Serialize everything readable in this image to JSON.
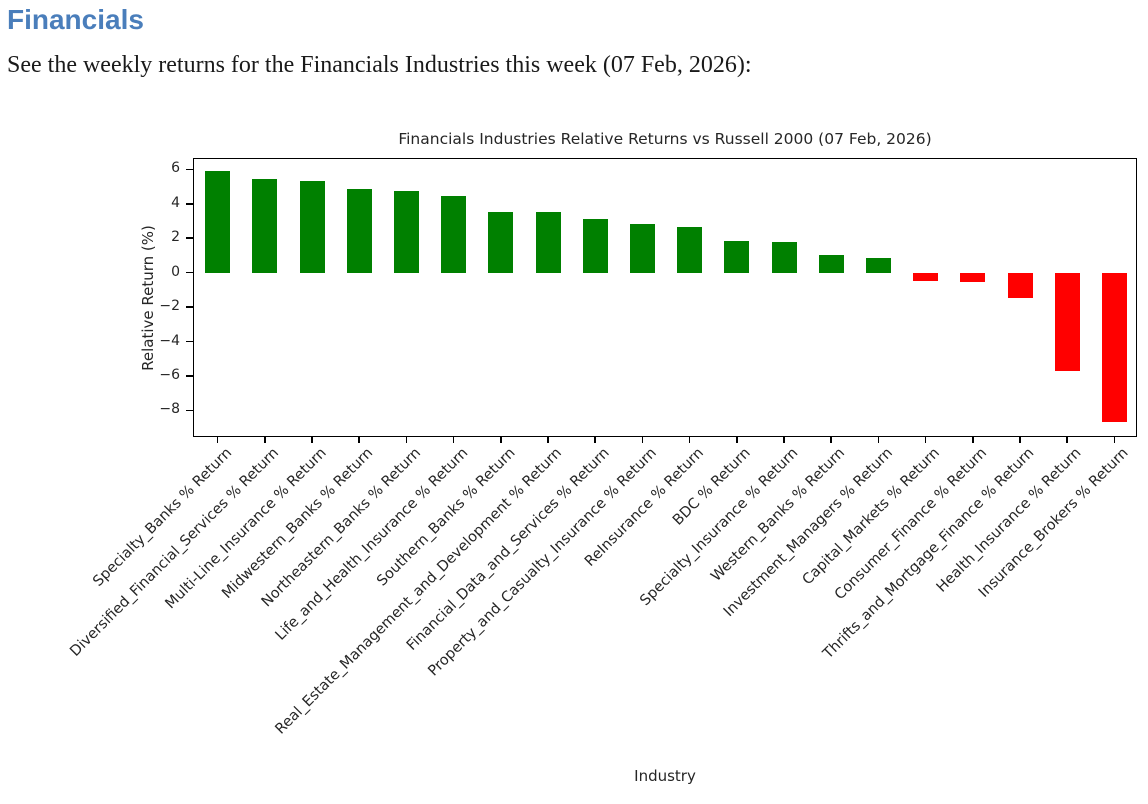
{
  "page": {
    "heading": "Financials",
    "intro": "See the weekly returns for the Financials Industries this week (07 Feb, 2026):"
  },
  "colors": {
    "heading_accent": "#4a7ebb",
    "positive_bar": "#008000",
    "negative_bar": "#ff0000",
    "axis": "#000000",
    "chart_text": "#262626"
  },
  "chart_data": {
    "type": "bar",
    "title": "Financials Industries Relative Returns vs Russell 2000 (07 Feb, 2026)",
    "xlabel": "Industry",
    "ylabel": "Relative Return (%)",
    "ylim": [
      -9.6,
      6.6
    ],
    "yticks": [
      6,
      4,
      2,
      0,
      -2,
      -4,
      -6,
      -8
    ],
    "grid": false,
    "legend": "none",
    "category_label_rotation_deg": 45,
    "categories": [
      "Specialty_Banks % Return",
      "Diversified_Financial_Services % Return",
      "Multi-Line_Insurance % Return",
      "Midwestern_Banks % Return",
      "Northeastern_Banks % Return",
      "Life_and_Health_Insurance % Return",
      "Southern_Banks % Return",
      "Real_Estate_Management_and_Development % Return",
      "Financial_Data_and_Services % Return",
      "Property_and_Casualty_Insurance % Return",
      "ReInsurance % Return",
      "BDC % Return",
      "Specialty_Insurance % Return",
      "Western_Banks % Return",
      "Investment_Managers % Return",
      "Capital_Markets % Return",
      "Consumer_Finance % Return",
      "Thrifts_and_Mortgage_Finance % Return",
      "Health_Insurance % Return",
      "Insurance_Brokers % Return"
    ],
    "values": [
      5.9,
      5.45,
      5.3,
      4.85,
      4.75,
      4.45,
      3.55,
      3.5,
      3.1,
      2.85,
      2.65,
      1.85,
      1.8,
      1.0,
      0.85,
      -0.5,
      -0.55,
      -1.45,
      -5.7,
      -8.7
    ]
  }
}
